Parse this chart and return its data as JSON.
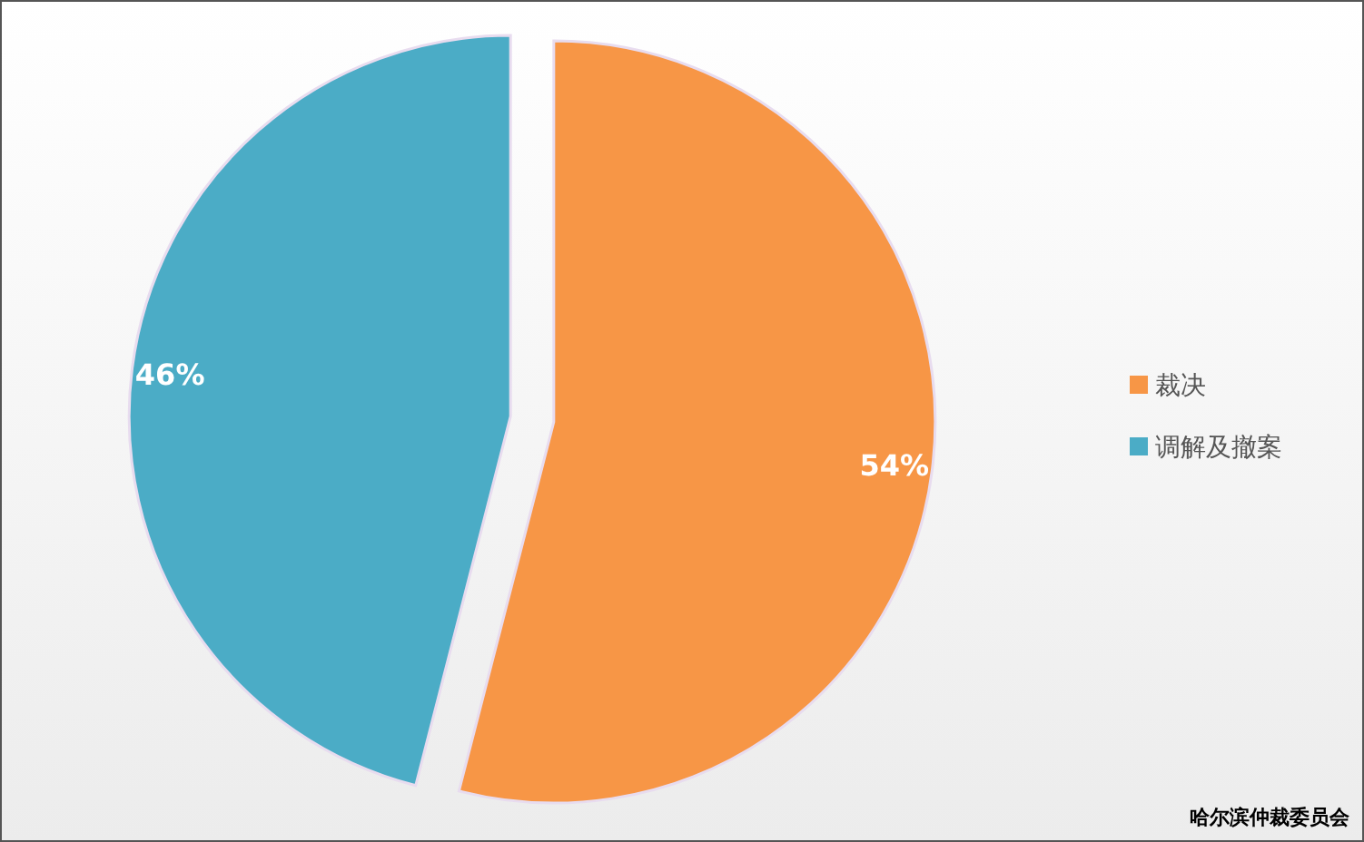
{
  "chart_data": {
    "type": "pie",
    "categories": [
      "裁决",
      "调解及撤案"
    ],
    "values": [
      54,
      46
    ],
    "colors": [
      "#f79646",
      "#4bacc6"
    ],
    "value_labels": [
      "54%",
      "46%"
    ],
    "legend": "right",
    "annotations": [
      "哈尔滨仲裁委员会"
    ]
  }
}
